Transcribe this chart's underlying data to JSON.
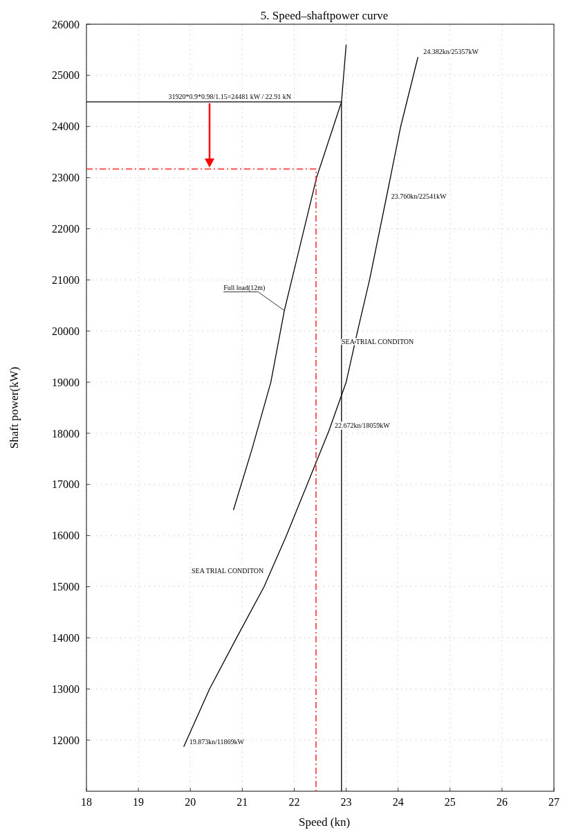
{
  "chart_data": {
    "type": "line",
    "title": "5. Speed–shaftpower curve",
    "xlabel": "Speed (kn)",
    "ylabel": "Shaft power(kW)",
    "xlim": [
      18,
      27
    ],
    "xticks": [
      18,
      19,
      20,
      21,
      22,
      23,
      24,
      25,
      26,
      27
    ],
    "ylim": [
      11000,
      26000
    ],
    "yticks": [
      12000,
      13000,
      14000,
      15000,
      16000,
      17000,
      18000,
      19000,
      20000,
      21000,
      22000,
      23000,
      24000,
      25000,
      26000
    ],
    "grid": true,
    "marker": "none",
    "series": [
      {
        "color": "#000000",
        "line_style": "solid",
        "x": [
          19.873,
          20.37,
          20.89,
          21.42,
          21.85,
          22.25,
          22.672,
          23.0,
          23.22,
          23.45,
          23.76,
          24.05,
          24.382
        ],
        "values": [
          11869,
          13000,
          14000,
          15000,
          16000,
          17000,
          18059,
          19000,
          20000,
          21000,
          22541,
          24000,
          25357
        ]
      },
      {
        "color": "#000000",
        "line_style": "solid",
        "x": [
          20.83,
          21.19,
          21.55,
          21.81,
          22.12,
          22.43,
          22.91,
          23.0
        ],
        "values": [
          16500,
          17700,
          19000,
          20400,
          21700,
          23000,
          24481,
          25600
        ]
      },
      {
        "color": "#000000",
        "line_style": "solid",
        "x": [
          18,
          22.91,
          22.91
        ],
        "values": [
          24481,
          24481,
          11000
        ]
      },
      {
        "color": "#ff0000",
        "line_style": "dashed",
        "x": [
          18,
          22.42,
          22.42
        ],
        "values": [
          23170,
          23170,
          11000
        ]
      }
    ],
    "annotations": [
      {
        "text": "31920*0.9*0.98/1.15=24481 kW / 22.91 kN",
        "x": 19.47,
        "y": 24481
      },
      {
        "text": "24.382kn/25357kW",
        "x": 24.382,
        "y": 25357
      },
      {
        "text": "23.760kn/22541kW",
        "x": 23.76,
        "y": 22541
      },
      {
        "text": "Full load(12m)",
        "x": 21.81,
        "y": 20400
      },
      "SEA TRIAL CONDITON",
      {
        "text": "22.672kn/18059kW",
        "x": 22.672,
        "y": 18059
      },
      "SEA TRIAL CONDITON",
      {
        "text": "19.873kn/11869kW",
        "x": 19.873,
        "y": 11869
      }
    ]
  }
}
